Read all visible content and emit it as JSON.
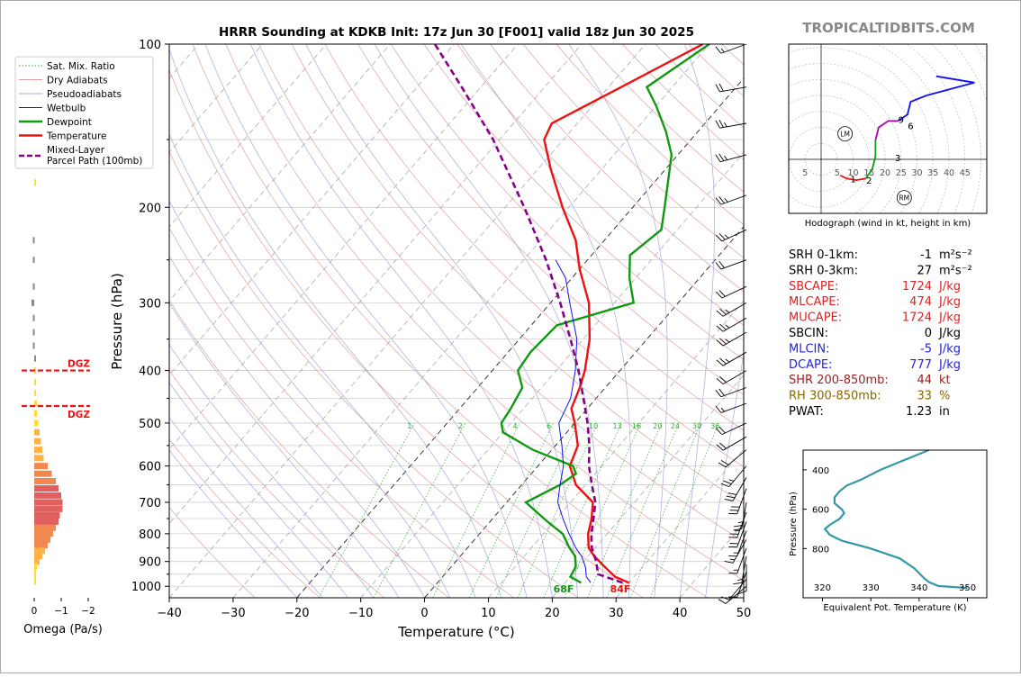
{
  "header": {
    "title": "HRRR Sounding at KDKB Init: 17z Jun 30 [F001] valid 18z Jun 30 2025",
    "brand": "TROPICALTIDBITS.COM"
  },
  "chart_data": [
    {
      "type": "line",
      "name": "skew-t",
      "xlabel": "Temperature (°C)",
      "ylabel": "Pressure (hPa)",
      "xlim": [
        -40,
        50
      ],
      "ylim": [
        1050,
        100
      ],
      "yscale": "log",
      "x_ticks": [
        "−40",
        "−30",
        "−20",
        "−10",
        "0",
        "10",
        "20",
        "30",
        "40",
        "50"
      ],
      "y_ticks": [
        "100",
        "200",
        "300",
        "400",
        "500",
        "600",
        "700",
        "800",
        "900",
        "1000"
      ],
      "mixing_ratio_labels": [
        "1",
        "2",
        "4",
        "6",
        "8",
        "10",
        "13",
        "16",
        "20",
        "24",
        "30",
        "36"
      ],
      "legend": {
        "position": "top-left",
        "entries": [
          "Sat. Mix. Ratio",
          "Dry Adiabats",
          "Pseudoadiabats",
          "Wetbulb",
          "Dewpoint",
          "Temperature",
          "Mixed-Layer\nParcel Path (100mb)"
        ]
      },
      "surface_labels": {
        "dewpoint": "68F",
        "temperature": "84F"
      },
      "series": [
        {
          "name": "Temperature",
          "color": "#ee1111",
          "p": [
            985,
            960,
            920,
            880,
            850,
            800,
            750,
            700,
            650,
            600,
            550,
            500,
            470,
            430,
            400,
            350,
            300,
            260,
            230,
            200,
            170,
            150,
            140,
            120,
            100
          ],
          "t": [
            30,
            27,
            24,
            21,
            19,
            17,
            15.5,
            13.5,
            8.5,
            5,
            3.5,
            0,
            -2.5,
            -4,
            -5.5,
            -9,
            -14,
            -20,
            -24.5,
            -31,
            -38,
            -43,
            -44,
            -38,
            -31
          ]
        },
        {
          "name": "Dewpoint",
          "color": "#119911",
          "p": [
            985,
            960,
            920,
            880,
            850,
            800,
            760,
            700,
            650,
            620,
            600,
            560,
            520,
            500,
            470,
            430,
            400,
            370,
            330,
            300,
            270,
            245,
            220,
            200,
            160,
            145,
            130,
            120,
            100
          ],
          "t": [
            22.5,
            20,
            19.5,
            18,
            16,
            13,
            9,
            3,
            6,
            7,
            5.5,
            -3,
            -10,
            -11.5,
            -12,
            -13,
            -16,
            -16.5,
            -16,
            -7,
            -11,
            -14,
            -12.5,
            -15,
            -21,
            -25,
            -30,
            -34,
            -30
          ]
        },
        {
          "name": "Wetbulb",
          "color": "#1111ee",
          "p": [
            985,
            960,
            920,
            880,
            850,
            800,
            750,
            700,
            650,
            600,
            550,
            500,
            450,
            400,
            350,
            300,
            270,
            250
          ],
          "t": [
            24,
            22.5,
            21,
            19,
            17,
            14,
            11,
            8,
            6,
            4,
            1,
            -2.5,
            -4,
            -7,
            -11,
            -17,
            -21,
            -25
          ]
        },
        {
          "name": "Mixed-Layer Parcel Path (100mb)",
          "color": "#880088",
          "p": [
            985,
            950,
            900,
            850,
            800,
            750,
            700,
            650,
            600,
            550,
            500,
            450,
            400,
            350,
            300,
            250,
            200,
            150,
            120,
            100
          ],
          "t": [
            29,
            24,
            22,
            19.5,
            17.5,
            15.8,
            13.9,
            11,
            8,
            5.3,
            2,
            -2,
            -6.5,
            -12,
            -18.5,
            -26.5,
            -37,
            -51,
            -63,
            -73
          ]
        }
      ],
      "wind_barbs": {
        "p": [
          100,
          120,
          140,
          160,
          190,
          220,
          250,
          280,
          300,
          320,
          340,
          370,
          400,
          430,
          460,
          500,
          530,
          560,
          600,
          630,
          660,
          700,
          730,
          760,
          790,
          820,
          850,
          880,
          910,
          940,
          970,
          1000
        ],
        "dir": [
          250,
          260,
          260,
          255,
          250,
          245,
          250,
          245,
          240,
          240,
          240,
          240,
          240,
          250,
          250,
          245,
          240,
          230,
          220,
          210,
          200,
          190,
          200,
          200,
          200,
          210,
          200,
          190,
          180,
          200,
          220,
          230
        ],
        "spd": [
          15,
          20,
          25,
          25,
          25,
          25,
          20,
          20,
          25,
          25,
          25,
          25,
          20,
          20,
          15,
          20,
          20,
          20,
          25,
          30,
          30,
          25,
          25,
          20,
          15,
          15,
          15,
          15,
          10,
          10,
          10,
          10
        ]
      }
    },
    {
      "type": "bar",
      "name": "omega",
      "xlabel": "Omega (Pa/s)",
      "x_ticks": [
        "0",
        "−1",
        "−2"
      ],
      "xlim": [
        0.2,
        -2.2
      ],
      "p": [
        118,
        140,
        160,
        180,
        230,
        250,
        280,
        300,
        320,
        340,
        360,
        380,
        400,
        420,
        440,
        460,
        480,
        500,
        520,
        540,
        560,
        580,
        600,
        620,
        640,
        660,
        680,
        700,
        720,
        740,
        760,
        780,
        800,
        820,
        840,
        860,
        880,
        900,
        920,
        940,
        960,
        980
      ],
      "values": [
        -0.05,
        -0.05,
        -0.05,
        -0.05,
        0.05,
        0.05,
        0.05,
        0.1,
        0.05,
        0.05,
        0.05,
        0,
        -0.05,
        -0.05,
        -0.05,
        -0.1,
        -0.1,
        -0.15,
        -0.2,
        -0.25,
        -0.3,
        -0.35,
        -0.5,
        -0.65,
        -0.8,
        -0.9,
        -1.0,
        -1.05,
        -1.05,
        -0.95,
        -0.9,
        -0.8,
        -0.7,
        -0.6,
        -0.5,
        -0.4,
        -0.3,
        -0.2,
        -0.1,
        -0.05,
        -0.05,
        -0.05
      ],
      "dgz": {
        "label": "DGZ",
        "top": 400,
        "bottom": 465
      }
    },
    {
      "type": "line",
      "name": "hodograph",
      "caption": "Hodograph (wind in kt, height in km)",
      "ring_labels": [
        "5",
        "5",
        "10",
        "15",
        "20",
        "25",
        "30",
        "35",
        "40",
        "45"
      ],
      "markers": [
        "LM",
        "RM"
      ],
      "height_labels": [
        "1",
        "2",
        "3",
        "6",
        "9"
      ],
      "segments": [
        {
          "color": "#ee1111",
          "u": [
            6,
            8,
            11,
            14
          ],
          "v": [
            -5,
            -6,
            -6.5,
            -6
          ]
        },
        {
          "color": "#119911",
          "u": [
            14,
            16,
            17,
            17
          ],
          "v": [
            -6,
            -3,
            1,
            6
          ]
        },
        {
          "color": "#aa00aa",
          "u": [
            17,
            18,
            21,
            24
          ],
          "v": [
            6,
            10,
            12,
            12
          ]
        },
        {
          "color": "#1111ee",
          "u": [
            24,
            27,
            28,
            33,
            48,
            36
          ],
          "v": [
            12,
            14,
            18,
            20,
            24,
            26
          ]
        }
      ]
    },
    {
      "type": "line",
      "name": "theta-e",
      "xlabel": "Equivalent Pot. Temperature (K)",
      "ylabel": "Pressure (hPa)",
      "x_ticks": [
        "320",
        "330",
        "340",
        "350"
      ],
      "y_ticks": [
        "400",
        "600",
        "800"
      ],
      "xlim": [
        316,
        354
      ],
      "ylim": [
        1050,
        300
      ],
      "color": "#3399aa",
      "p": [
        300,
        350,
        400,
        450,
        480,
        510,
        540,
        570,
        600,
        620,
        650,
        680,
        700,
        730,
        760,
        800,
        850,
        900,
        950,
        970,
        990,
        1000
      ],
      "theta_e": [
        342,
        337,
        332,
        328,
        325,
        323.5,
        322.5,
        322.5,
        324,
        324.5,
        323.5,
        321.5,
        320.5,
        321.5,
        324,
        330,
        336,
        339,
        341,
        342,
        344,
        350
      ]
    }
  ],
  "indices": [
    {
      "label": "SRH 0-1km:",
      "value": "-1",
      "unit": "m²s⁻²",
      "color": "#000000"
    },
    {
      "label": "SRH 0-3km:",
      "value": "27",
      "unit": "m²s⁻²",
      "color": "#000000"
    },
    {
      "label": "SBCAPE:",
      "value": "1724",
      "unit": "J/kg",
      "color": "#dd2222"
    },
    {
      "label": "MLCAPE:",
      "value": "474",
      "unit": "J/kg",
      "color": "#dd2222"
    },
    {
      "label": "MUCAPE:",
      "value": "1724",
      "unit": "J/kg",
      "color": "#dd2222"
    },
    {
      "label": "SBCIN:",
      "value": "0",
      "unit": "J/kg",
      "color": "#000000"
    },
    {
      "label": "MLCIN:",
      "value": "-5",
      "unit": "J/kg",
      "color": "#2222dd"
    },
    {
      "label": "DCAPE:",
      "value": "777",
      "unit": "J/kg",
      "color": "#2222dd"
    },
    {
      "label": "SHR 200-850mb:",
      "value": "44",
      "unit": "kt",
      "color": "#992222"
    },
    {
      "label": "RH 300-850mb:",
      "value": "33",
      "unit": "%",
      "color": "#886600"
    },
    {
      "label": "PWAT:",
      "value": "1.23",
      "unit": "in",
      "color": "#000000"
    }
  ]
}
